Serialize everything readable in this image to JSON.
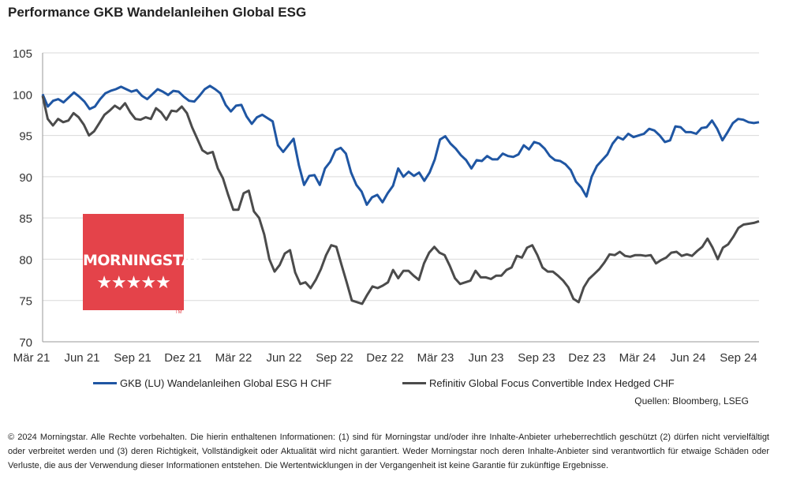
{
  "title": "Performance GKB Wandelanleihen Global ESG",
  "sources": "Quellen: Bloomberg, LSEG",
  "disclaimer": "© 2024 Morningstar. Alle Rechte vorbehalten. Die hierin enthaltenen Informationen: (1) sind für Morningstar und/oder ihre Inhalte-Anbieter urheberrechtlich geschützt (2) dürfen nicht vervielfältigt oder verbreitet werden und (3) deren Richtigkeit, Vollständigkeit oder Aktualität wird nicht garantiert. Weder Morningstar noch deren Inhalte-Anbieter sind verantwortlich für etwaige Schäden oder Verluste, die aus der Verwendung dieser Informationen entstehen. Die Wertentwicklungen in der Vergangenheit ist keine Garantie für zukünftige Ergebnisse.",
  "logo": {
    "text": "MORNINGSTAR",
    "stars": "★★★★★",
    "tm": "TM",
    "color": "#e4434a"
  },
  "chart_data": {
    "type": "line",
    "x_labels": [
      "Mär 21",
      "Jun 21",
      "Sep 21",
      "Dez 21",
      "Mär 22",
      "Jun 22",
      "Sep 22",
      "Dez 22",
      "Mär 23",
      "Jun 23",
      "Sep 23",
      "Dez 23",
      "Mär 24",
      "Jun 24",
      "Sep 24"
    ],
    "y_ticks": [
      70,
      75,
      80,
      85,
      90,
      95,
      100,
      105
    ],
    "ylim": [
      70,
      105
    ],
    "grid": true,
    "legend_position": "bottom",
    "series": [
      {
        "name": "GKB (LU) Wandelanleihen Global ESG H CHF",
        "color": "#1f56a3",
        "values": [
          100,
          98.5,
          99.2,
          99.4,
          99.0,
          99.6,
          100.2,
          99.7,
          99.1,
          98.2,
          98.5,
          99.4,
          100.1,
          100.4,
          100.6,
          100.9,
          100.6,
          100.3,
          100.5,
          99.8,
          99.4,
          100.0,
          100.6,
          100.3,
          99.9,
          100.4,
          100.3,
          99.7,
          99.2,
          99.1,
          99.8,
          100.6,
          101.0,
          100.6,
          100.1,
          98.7,
          97.9,
          98.6,
          98.7,
          97.3,
          96.4,
          97.2,
          97.5,
          97.1,
          96.7,
          93.8,
          93.0,
          93.8,
          94.6,
          91.4,
          89.0,
          90.1,
          90.2,
          89.0,
          91.0,
          91.8,
          93.2,
          93.5,
          92.8,
          90.5,
          89.0,
          88.2,
          86.6,
          87.5,
          87.8,
          86.9,
          88.0,
          88.9,
          91.0,
          90.0,
          90.6,
          90.1,
          90.5,
          89.5,
          90.5,
          92.1,
          94.5,
          94.9,
          94.0,
          93.4,
          92.6,
          92.0,
          91.0,
          92.0,
          91.9,
          92.5,
          92.1,
          92.1,
          92.8,
          92.5,
          92.4,
          92.7,
          93.8,
          93.3,
          94.2,
          94.0,
          93.4,
          92.5,
          92.0,
          91.9,
          91.5,
          90.8,
          89.4,
          88.7,
          87.6,
          90.0,
          91.3,
          92.0,
          92.7,
          94.0,
          94.8,
          94.5,
          95.2,
          94.8,
          95.0,
          95.2,
          95.8,
          95.6,
          95.0,
          94.2,
          94.4,
          96.1,
          96.0,
          95.4,
          95.4,
          95.2,
          95.9,
          96.0,
          96.8,
          95.8,
          94.4,
          95.4,
          96.5,
          97.0,
          96.9,
          96.6,
          96.5,
          96.6
        ]
      },
      {
        "name": "Refinitiv Global Focus Convertible Index Hedged CHF",
        "color": "#4b4b4b",
        "values": [
          99.8,
          97.0,
          96.2,
          97.0,
          96.6,
          96.8,
          97.7,
          97.2,
          96.3,
          95.0,
          95.5,
          96.5,
          97.5,
          98.0,
          98.6,
          98.2,
          98.9,
          97.8,
          97.0,
          96.9,
          97.2,
          97.0,
          98.3,
          97.8,
          96.9,
          98.0,
          97.9,
          98.5,
          97.7,
          96.0,
          94.6,
          93.2,
          92.8,
          93.0,
          91.0,
          89.8,
          87.8,
          86.0,
          86.0,
          88.0,
          88.3,
          85.8,
          85.0,
          83.0,
          80.0,
          78.5,
          79.3,
          80.7,
          81.1,
          78.4,
          77.0,
          77.2,
          76.5,
          77.5,
          78.8,
          80.5,
          81.7,
          81.5,
          79.3,
          77.2,
          75.0,
          74.8,
          74.6,
          75.7,
          76.7,
          76.5,
          76.8,
          77.2,
          78.7,
          77.7,
          78.6,
          78.6,
          78.0,
          77.5,
          79.5,
          80.8,
          81.5,
          80.8,
          80.5,
          79.2,
          77.7,
          77.0,
          77.2,
          77.4,
          78.6,
          77.8,
          77.8,
          77.6,
          78.0,
          78.0,
          78.7,
          79.0,
          80.4,
          80.2,
          81.4,
          81.7,
          80.5,
          79.0,
          78.5,
          78.5,
          78.0,
          77.4,
          76.6,
          75.2,
          74.8,
          76.6,
          77.6,
          78.2,
          78.8,
          79.6,
          80.6,
          80.5,
          80.9,
          80.4,
          80.3,
          80.5,
          80.5,
          80.4,
          80.5,
          79.5,
          79.9,
          80.2,
          80.8,
          80.9,
          80.4,
          80.6,
          80.4,
          81.0,
          81.5,
          82.5,
          81.4,
          80.0,
          81.4,
          81.8,
          82.7,
          83.8,
          84.2,
          84.3,
          84.4,
          84.6
        ]
      }
    ]
  }
}
